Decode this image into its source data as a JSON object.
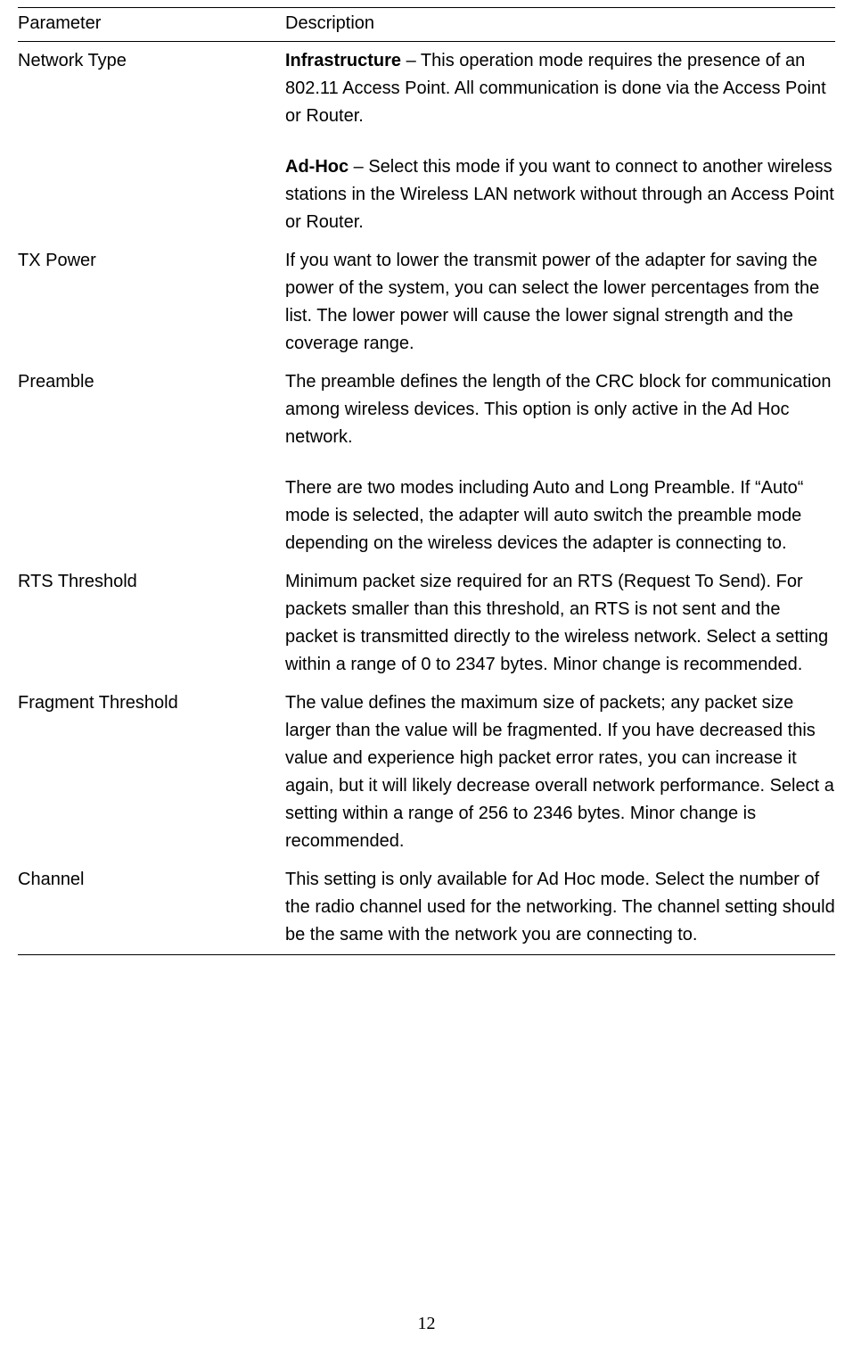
{
  "table": {
    "headers": {
      "parameter": "Parameter",
      "description": "Description"
    },
    "rows": [
      {
        "param": "Network Type",
        "blocks": [
          {
            "bold": "Infrastructure",
            "text": " – This operation mode requires the presence of an 802.11 Access Point. All communication is done via the Access Point or Router."
          },
          {
            "bold": "Ad-Hoc",
            "text": " – Select this mode if you want to connect to another wireless stations in the Wireless LAN network without through an Access Point or Router."
          }
        ]
      },
      {
        "param": "TX Power",
        "blocks": [
          {
            "text": "If you want to lower the transmit power of the adapter for saving the power of the system, you can select the lower percentages from the list. The lower power will cause the lower signal strength and the coverage range."
          }
        ]
      },
      {
        "param": "Preamble",
        "blocks": [
          {
            "text": "The preamble defines the length of the CRC block for communication among wireless devices. This option is only active in the Ad Hoc network."
          },
          {
            "text": "There are two modes including Auto and Long Preamble. If “Auto“ mode is selected, the adapter will auto switch the preamble mode depending on the wireless devices the adapter is connecting to."
          }
        ]
      },
      {
        "param": "RTS Threshold",
        "blocks": [
          {
            "text": "Minimum packet size required for an RTS (Request To Send). For packets smaller than this threshold, an RTS is not sent and the packet is transmitted directly to the wireless network. Select a setting within a range of 0 to 2347 bytes. Minor change is recommended."
          }
        ]
      },
      {
        "param": "Fragment Threshold",
        "blocks": [
          {
            "text": "The value defines the maximum size of packets; any packet size larger than the value will be fragmented. If you have decreased this value and experience high packet error rates, you can increase it again, but it will likely decrease overall network performance. Select a setting within a range of 256 to 2346 bytes. Minor change is recommended."
          }
        ]
      },
      {
        "param": "Channel",
        "blocks": [
          {
            "text": "This setting is only available for Ad Hoc mode. Select the number of the radio channel used for the networking. The channel setting should be the same with the network you are connecting to."
          }
        ]
      }
    ]
  },
  "pageNumber": "12"
}
